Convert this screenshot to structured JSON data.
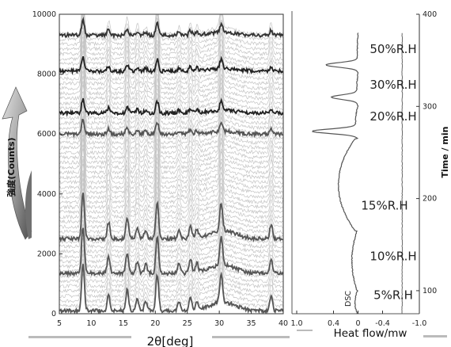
{
  "chart_data": [
    {
      "type": "line",
      "xlabel": "2θ[deg]",
      "ylabel": "強度(Counts)",
      "xlim": [
        5,
        40
      ],
      "ylim": [
        0,
        10000
      ],
      "x_ticks": [
        "5",
        "10",
        "15",
        "20",
        "25",
        "30",
        "35",
        "40"
      ],
      "y_ticks": [
        "0",
        "2000",
        "4000",
        "6000",
        "8000",
        "10000"
      ],
      "grid": false,
      "peak_positions_2theta": [
        8.7,
        12.7,
        15.6,
        17.2,
        18.5,
        20.3,
        23.7,
        25.5,
        26.5,
        30.3,
        38.1
      ],
      "stack": {
        "pattern_count": 57,
        "baseline_first": 100,
        "offset_step": 165,
        "highlighted_baselines": [
          100,
          1350,
          2500,
          6000,
          6700,
          8100,
          9300
        ],
        "highlight_colors": [
          "#555555",
          "#555555",
          "#555555",
          "#555555",
          "#222222",
          "#222222",
          "#333333"
        ]
      },
      "arrow_direction": "up"
    },
    {
      "type": "line",
      "xlabel": "Heat flow/mw",
      "y2label": "Time / min",
      "xlim": [
        1.0,
        -1.0
      ],
      "ylim": [
        75,
        400
      ],
      "x_ticks": [
        "1.0",
        "0.4",
        "0",
        "-0.4",
        "-1.0"
      ],
      "y2_ticks": [
        "100",
        "200",
        "300",
        "400"
      ],
      "dsc_label": "DSC",
      "humidity_steps": [
        {
          "label": "5%R.H",
          "t_start": 75,
          "t_end": 100,
          "heat_flow": 0.05
        },
        {
          "label": "10%R.H",
          "t_start": 100,
          "t_end": 165,
          "heat_flow": 0.1
        },
        {
          "label": "15%R.H",
          "t_start": 165,
          "t_end": 265,
          "heat_flow": 0.32
        },
        {
          "label": "20%R.H",
          "t_start": 265,
          "t_end": 300,
          "heat_flow": 0.04
        },
        {
          "label": "30%R.H",
          "t_start": 300,
          "t_end": 335,
          "heat_flow": 0.02
        },
        {
          "label": "50%R.H",
          "t_start": 335,
          "t_end": 380,
          "heat_flow": 0.01
        }
      ],
      "transition_spikes": [
        {
          "time": 273,
          "heat_flow": 0.75
        },
        {
          "time": 310,
          "heat_flow": 0.45
        },
        {
          "time": 345,
          "heat_flow": 0.55
        }
      ],
      "reference_trace_heat_flow": -0.72
    }
  ]
}
